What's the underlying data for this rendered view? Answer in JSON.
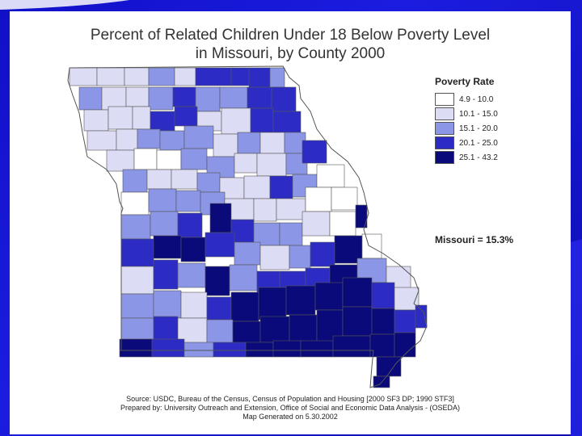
{
  "slide": {
    "title_line1": "Percent of Related Children Under 18 Below Poverty Level",
    "title_line2": "in Missouri, by County  2000"
  },
  "legend": {
    "title": "Poverty Rate",
    "items": [
      {
        "label": "4.9 - 10.0",
        "color": "#ffffff"
      },
      {
        "label": "10.1 - 15.0",
        "color": "#dcdcf5"
      },
      {
        "label": "15.1 - 20.0",
        "color": "#8c96e6"
      },
      {
        "label": "20.1 - 25.0",
        "color": "#2c2cc4"
      },
      {
        "label": "25.1 - 43.2",
        "color": "#0a0a7a"
      }
    ]
  },
  "state_rate": "Missouri = 15.3%",
  "source": {
    "line1": "Source:  USDC, Bureau of the Census, Census of Population and Housing [2000 SF3 DP; 1990 STF3]",
    "line2": "Prepared by: University Outreach and Extension, Office of Social and Economic Data Analysis - (OSEDA)",
    "line3": "Map Generated on 5.30.2002"
  },
  "map": {
    "border_color": "#555555"
  }
}
